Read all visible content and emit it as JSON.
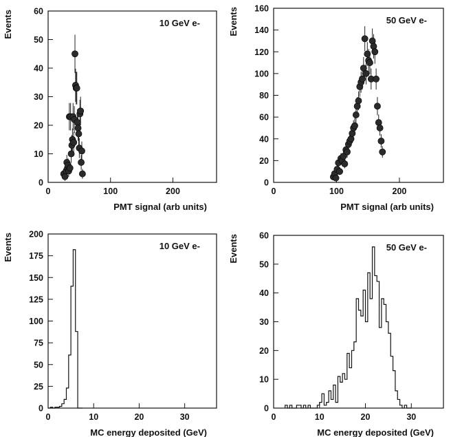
{
  "chart_data": [
    {
      "type": "scatter",
      "annotation": "10 GeV e-",
      "xlabel": "PMT signal (arb units)",
      "ylabel": "Events",
      "xlim": [
        0,
        270
      ],
      "ylim": [
        0,
        60
      ],
      "xticks": [
        0,
        100,
        200
      ],
      "yticks": [
        0,
        10,
        20,
        30,
        40,
        50,
        60
      ],
      "error_bars": true,
      "series": [
        {
          "x": [
            25,
            27,
            29,
            30,
            31,
            32,
            33,
            34,
            35,
            36,
            37,
            38,
            39,
            40,
            41,
            42,
            43,
            44,
            45,
            46,
            47,
            48,
            49,
            50,
            51,
            52,
            53,
            54,
            55
          ],
          "y": [
            3,
            2,
            4,
            7,
            5,
            6,
            4,
            23,
            5,
            23,
            10,
            13,
            15,
            23,
            14,
            22,
            45,
            34,
            33,
            33,
            21,
            19,
            17,
            12,
            24,
            25,
            7,
            11,
            3
          ],
          "err": [
            1.8,
            1.5,
            2,
            2.6,
            2.2,
            2.4,
            2,
            4.8,
            2.2,
            4.8,
            3.2,
            3.6,
            3.9,
            4.8,
            3.7,
            4.7,
            6.7,
            5.8,
            5.7,
            5.7,
            4.6,
            4.4,
            4.1,
            3.5,
            4.9,
            5,
            2.6,
            3.3,
            1.7
          ]
        }
      ]
    },
    {
      "type": "scatter",
      "annotation": "50 GeV e-",
      "xlabel": "PMT signal (arb units)",
      "ylabel": "Events",
      "xlim": [
        0,
        270
      ],
      "ylim": [
        0,
        160
      ],
      "xticks": [
        0,
        100,
        200
      ],
      "yticks": [
        0,
        20,
        40,
        60,
        80,
        100,
        120,
        140,
        160
      ],
      "error_bars": true,
      "series": [
        {
          "x": [
            95,
            97,
            99,
            101,
            103,
            105,
            107,
            109,
            111,
            113,
            115,
            117,
            119,
            121,
            123,
            125,
            127,
            129,
            131,
            133,
            135,
            137,
            139,
            141,
            143,
            145,
            147,
            149,
            151,
            153,
            155,
            157,
            159,
            161,
            163,
            165,
            167,
            169,
            171,
            173
          ],
          "y": [
            5,
            8,
            4,
            12,
            18,
            10,
            22,
            20,
            24,
            17,
            30,
            28,
            35,
            38,
            40,
            45,
            50,
            52,
            62,
            70,
            75,
            88,
            92,
            95,
            105,
            132,
            100,
            118,
            112,
            110,
            95,
            130,
            125,
            120,
            95,
            70,
            55,
            50,
            38,
            28
          ],
          "err": [
            2.2,
            2.8,
            2,
            3.5,
            4.2,
            3.2,
            4.7,
            4.5,
            4.9,
            4.1,
            5.5,
            5.3,
            5.9,
            6.2,
            6.3,
            6.7,
            7.1,
            7.2,
            7.9,
            8.4,
            8.7,
            9.4,
            9.6,
            9.7,
            10.2,
            11.5,
            10,
            10.9,
            10.6,
            10.5,
            9.7,
            11.4,
            11.2,
            11,
            9.7,
            8.4,
            7.4,
            7.1,
            6.2,
            5.3
          ]
        }
      ]
    },
    {
      "type": "histogram",
      "annotation": "10 GeV e-",
      "xlabel": "MC energy deposited (GeV)",
      "ylabel": "Events",
      "xlim": [
        0,
        37
      ],
      "ylim": [
        0,
        200
      ],
      "xticks": [
        0,
        10,
        20,
        30
      ],
      "yticks": [
        0,
        25,
        50,
        75,
        100,
        125,
        150,
        175,
        200
      ],
      "bin_edges": [
        0,
        0.5,
        1,
        1.5,
        2,
        2.5,
        3,
        3.5,
        4,
        4.5,
        5,
        5.5,
        6,
        6.5,
        7,
        7.5
      ],
      "counts": [
        0,
        1,
        0,
        1,
        1,
        2,
        5,
        10,
        23,
        61,
        140,
        182,
        88,
        0,
        0
      ]
    },
    {
      "type": "histogram",
      "annotation": "50 GeV e-",
      "xlabel": "MC energy deposited (GeV)",
      "ylabel": "Events",
      "xlim": [
        0,
        37
      ],
      "ylim": [
        0,
        60
      ],
      "xticks": [
        0,
        10,
        20,
        30
      ],
      "yticks": [
        0,
        10,
        20,
        30,
        40,
        50,
        60
      ],
      "bin_edges": [
        2.5,
        3,
        3.5,
        4,
        4.5,
        5,
        5.5,
        6,
        6.5,
        7,
        7.5,
        8,
        8.5,
        9,
        9.5,
        10,
        10.5,
        11,
        11.5,
        12,
        12.5,
        13,
        13.5,
        14,
        14.5,
        15,
        15.5,
        16,
        16.5,
        17,
        17.5,
        18,
        18.5,
        19,
        19.5,
        20,
        20.5,
        21,
        21.5,
        22,
        22.5,
        23,
        23.5,
        24,
        24.5,
        25,
        25.5,
        26,
        26.5,
        27,
        27.5,
        28,
        28.5,
        29,
        29.5,
        30
      ],
      "counts": [
        1,
        0,
        1,
        0,
        0,
        1,
        1,
        0,
        1,
        0,
        1,
        0,
        0,
        0,
        1,
        2,
        5,
        1,
        2,
        6,
        3,
        8,
        2,
        11,
        9,
        12,
        10,
        19,
        14,
        20,
        23,
        38,
        34,
        32,
        41,
        30,
        47,
        38,
        56,
        46,
        44,
        28,
        38,
        36,
        30,
        26,
        18,
        13,
        6,
        3,
        1,
        0,
        1,
        0,
        0
      ]
    }
  ]
}
